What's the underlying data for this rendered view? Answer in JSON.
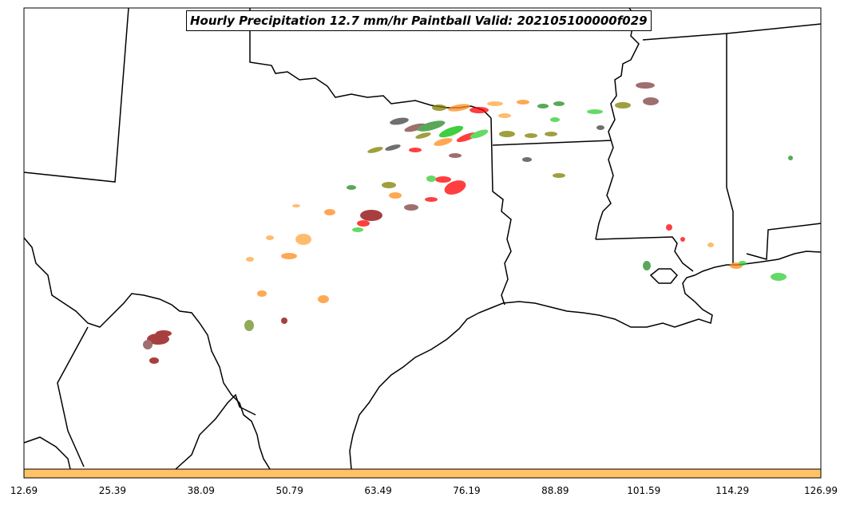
{
  "title": "Hourly Precipitation 12.7 mm/hr Paintball Valid: 202105100000f029",
  "colorbar": {
    "color": "#FFC266",
    "ticks": [
      "12.69",
      "25.39",
      "38.09",
      "50.79",
      "63.49",
      "76.19",
      "88.89",
      "101.59",
      "114.29",
      "126.99"
    ]
  },
  "member_colors": [
    "#8B0000",
    "#FF0000",
    "#FF8C1A",
    "#FFA640",
    "#00C000",
    "#32CD32",
    "#228B22",
    "#6B8E23",
    "#808000",
    "#7F3F3F",
    "#3F3F3F"
  ]
}
